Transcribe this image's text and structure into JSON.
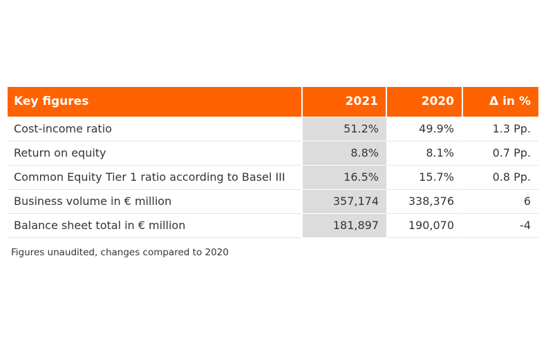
{
  "table": {
    "headers": [
      "Key figures",
      "2021",
      "2020",
      "Δ in %"
    ],
    "rows": [
      [
        "Cost-income ratio",
        "51.2%",
        "49.9%",
        "1.3 Pp."
      ],
      [
        "Return on equity",
        "8.8%",
        "8.1%",
        "0.7 Pp."
      ],
      [
        "Common Equity Tier 1 ratio according to Basel III",
        "16.5%",
        "15.7%",
        "0.8 Pp."
      ],
      [
        "Business volume in € million",
        "357,174",
        "338,376",
        "6"
      ],
      [
        "Balance sheet total in € million",
        "181,897",
        "190,070",
        "-4"
      ]
    ]
  },
  "footnote": "Figures unaudited, changes compared to 2020",
  "colors": {
    "header_bg": "#ff6200",
    "highlight_column_bg": "#dcdcdc"
  }
}
